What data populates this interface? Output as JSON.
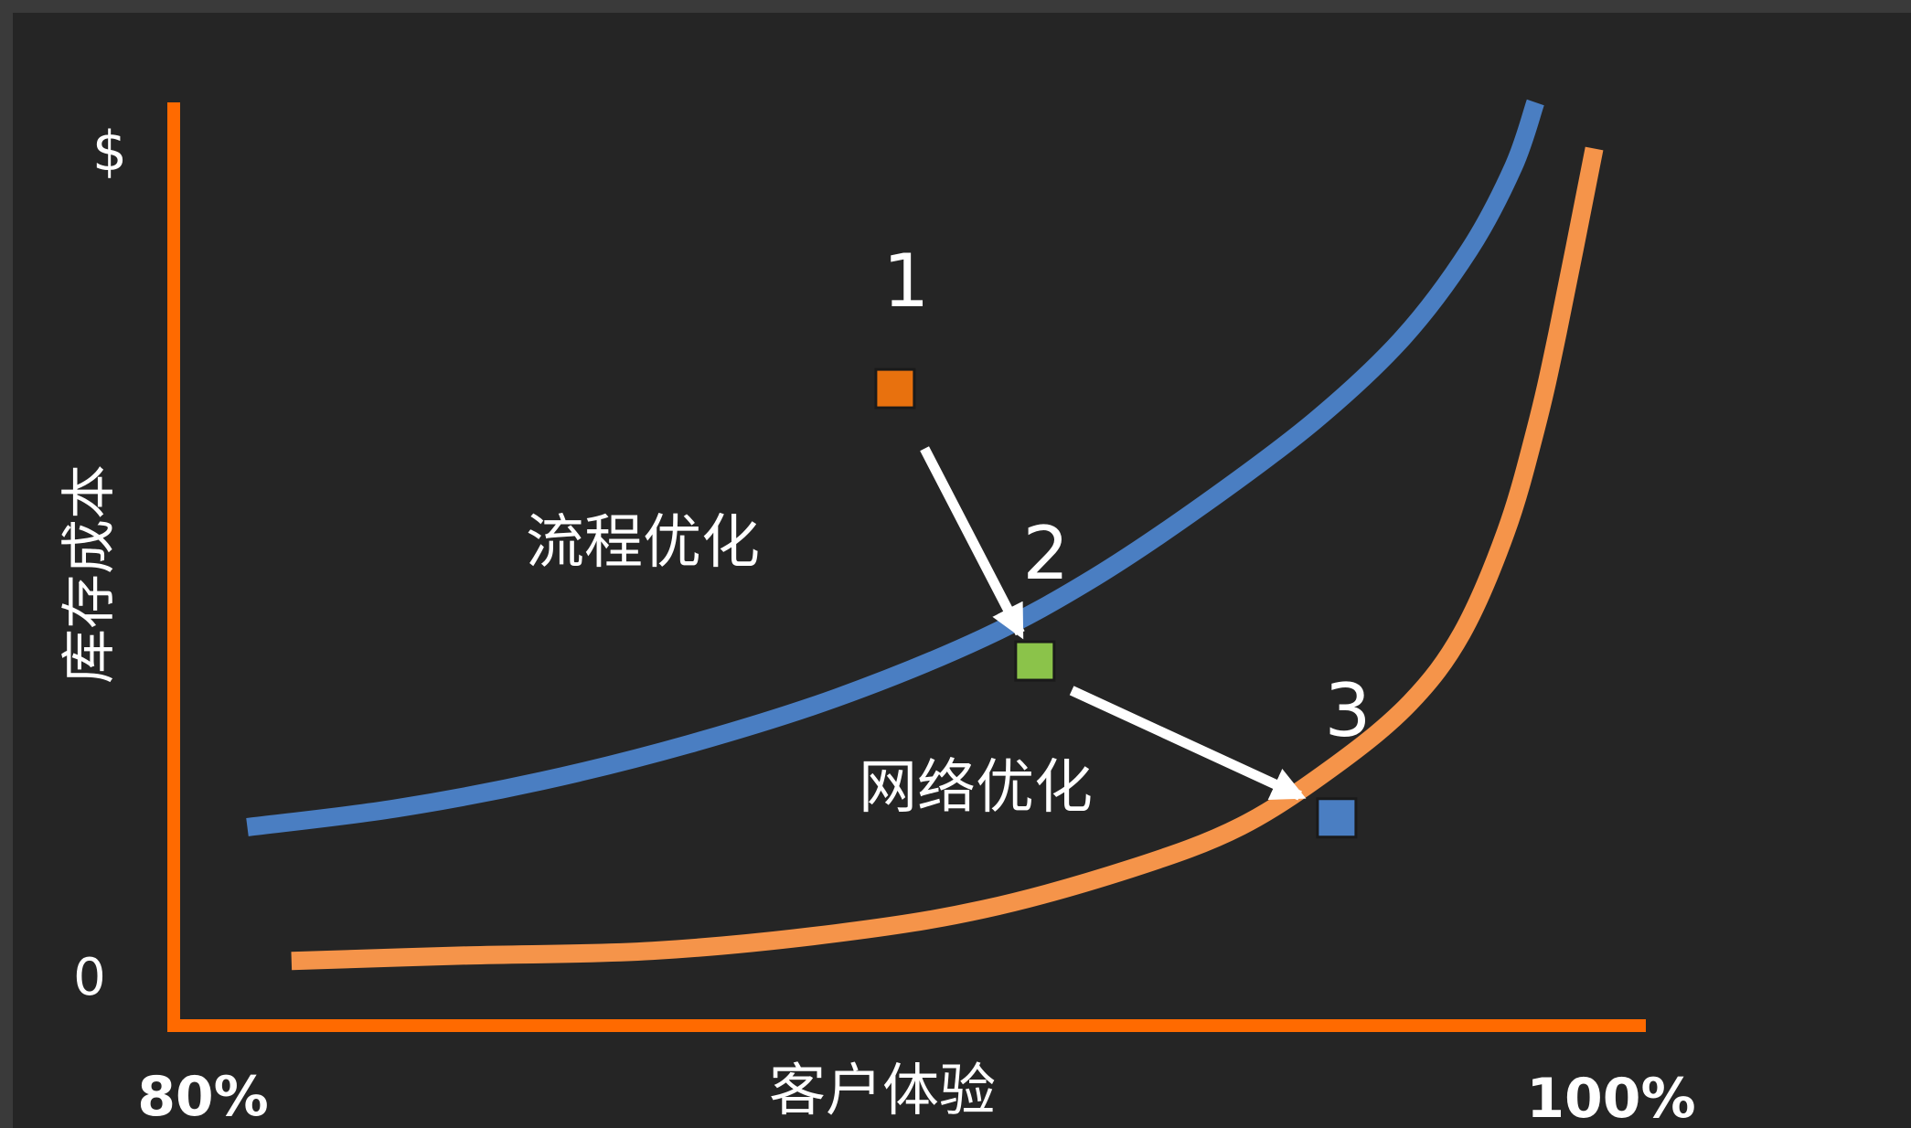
{
  "chart_data": {
    "type": "line",
    "ylabel": "库存成本",
    "xlabel": "客户体验",
    "x_tick_labels": [
      "80%",
      "100%"
    ],
    "y_tick_labels": [
      "0",
      "$"
    ],
    "xlim": [
      80,
      100
    ],
    "ylim": [
      0,
      100
    ],
    "series": [
      {
        "color": "#4a7ec2",
        "x": [
          81.0,
          83.0,
          85.0,
          87.0,
          89.0,
          91.0,
          92.5,
          94.0,
          95.5,
          96.7,
          97.6,
          98.2,
          98.5
        ],
        "y": [
          21.5,
          23.5,
          26.5,
          30.5,
          35.5,
          42.0,
          48.5,
          56.5,
          65.5,
          74.5,
          84.0,
          93.0,
          100.0
        ]
      },
      {
        "color": "#f5944a",
        "x": [
          81.6,
          84.0,
          86.5,
          89.0,
          91.0,
          93.0,
          94.5,
          95.8,
          96.8,
          97.5,
          98.1,
          98.5,
          98.8,
          99.3
        ],
        "y": [
          7.0,
          7.6,
          8.1,
          10.0,
          12.6,
          17.0,
          21.6,
          28.3,
          35.0,
          42.5,
          53.5,
          64.5,
          75.0,
          95.0
        ]
      }
    ],
    "markers": [
      {
        "label": "1",
        "color": "#e8710e",
        "x": 89.8,
        "y": 69.0
      },
      {
        "label": "2",
        "color": "#8bc34a",
        "x": 91.7,
        "y": 39.5
      },
      {
        "label": "3",
        "color": "#4a7ec2",
        "x": 95.8,
        "y": 22.5
      }
    ],
    "annotations": [
      {
        "text": "流程优化",
        "x": 87.7,
        "y": 52.6
      },
      {
        "text": "网络优化",
        "x": 92.1,
        "y": 26.2
      }
    ],
    "arrows": [
      {
        "from": [
          90.2,
          62.5
        ],
        "to": [
          91.5,
          42.5
        ]
      },
      {
        "from": [
          92.2,
          36.3
        ],
        "to": [
          95.3,
          24.9
        ]
      }
    ],
    "axis_color": "#ff6a00",
    "grid": false
  }
}
